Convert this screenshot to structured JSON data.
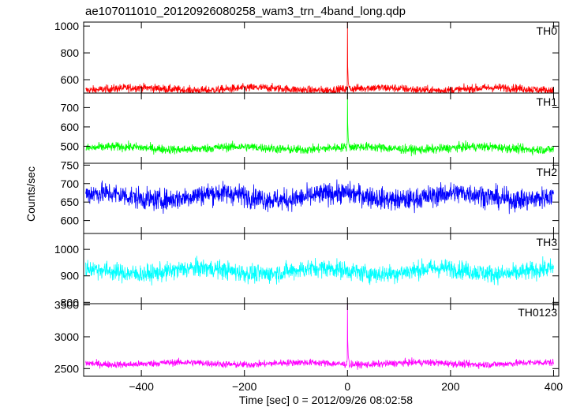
{
  "chart_data": {
    "type": "line",
    "title": "ae107011010_20120926080258_wam3_trn_4band_long.qdp",
    "xlabel": "Time [sec] 0 = 2012/09/26 08:02:58",
    "ylabel": "Counts/sec",
    "xlim": [
      -512,
      410
    ],
    "x_ticks": [
      -400,
      -200,
      0,
      200,
      400
    ],
    "panels": [
      {
        "name": "TH0",
        "color": "#ff0000",
        "ylim": [
          500,
          1030
        ],
        "y_ticks": [
          600,
          800,
          1000
        ],
        "baseline": 530,
        "noise": 40,
        "spike_peak": 1040,
        "burst": [
          {
            "x": -0.5,
            "y": 560
          },
          {
            "x": 0,
            "y": 1040
          },
          {
            "x": 0.5,
            "y": 700
          },
          {
            "x": 1.5,
            "y": 580
          },
          {
            "x": 3,
            "y": 545
          }
        ]
      },
      {
        "name": "TH1",
        "color": "#00ff00",
        "ylim": [
          412,
          775
        ],
        "y_ticks": [
          500,
          600,
          700
        ],
        "baseline": 490,
        "noise": 30,
        "spike_peak": 770,
        "burst": [
          {
            "x": -0.5,
            "y": 520
          },
          {
            "x": 0,
            "y": 770
          },
          {
            "x": 0.5,
            "y": 620
          },
          {
            "x": 1.5,
            "y": 540
          },
          {
            "x": 3,
            "y": 505
          }
        ]
      },
      {
        "name": "TH2",
        "color": "#0000ff",
        "ylim": [
          565,
          755
        ],
        "y_ticks": [
          600,
          650,
          700,
          750
        ],
        "baseline": 665,
        "noise": 38,
        "spike_peak": 715,
        "burst": []
      },
      {
        "name": "TH3",
        "color": "#00ffff",
        "ylim": [
          795,
          1060
        ],
        "y_ticks": [
          800,
          900,
          1000
        ],
        "baseline": 918,
        "noise": 45,
        "spike_peak": 990,
        "burst": []
      },
      {
        "name": "TH0123",
        "color": "#ff00ff",
        "ylim": [
          2380,
          3520
        ],
        "y_ticks": [
          2500,
          3000,
          3500
        ],
        "baseline": 2580,
        "noise": 70,
        "spike_peak": 3520,
        "burst": [
          {
            "x": -0.5,
            "y": 2650
          },
          {
            "x": 0,
            "y": 3520
          },
          {
            "x": 0.5,
            "y": 2950
          },
          {
            "x": 1.5,
            "y": 2700
          },
          {
            "x": 3,
            "y": 2620
          }
        ]
      }
    ],
    "grid": false,
    "legend": "panel labels top-right"
  }
}
